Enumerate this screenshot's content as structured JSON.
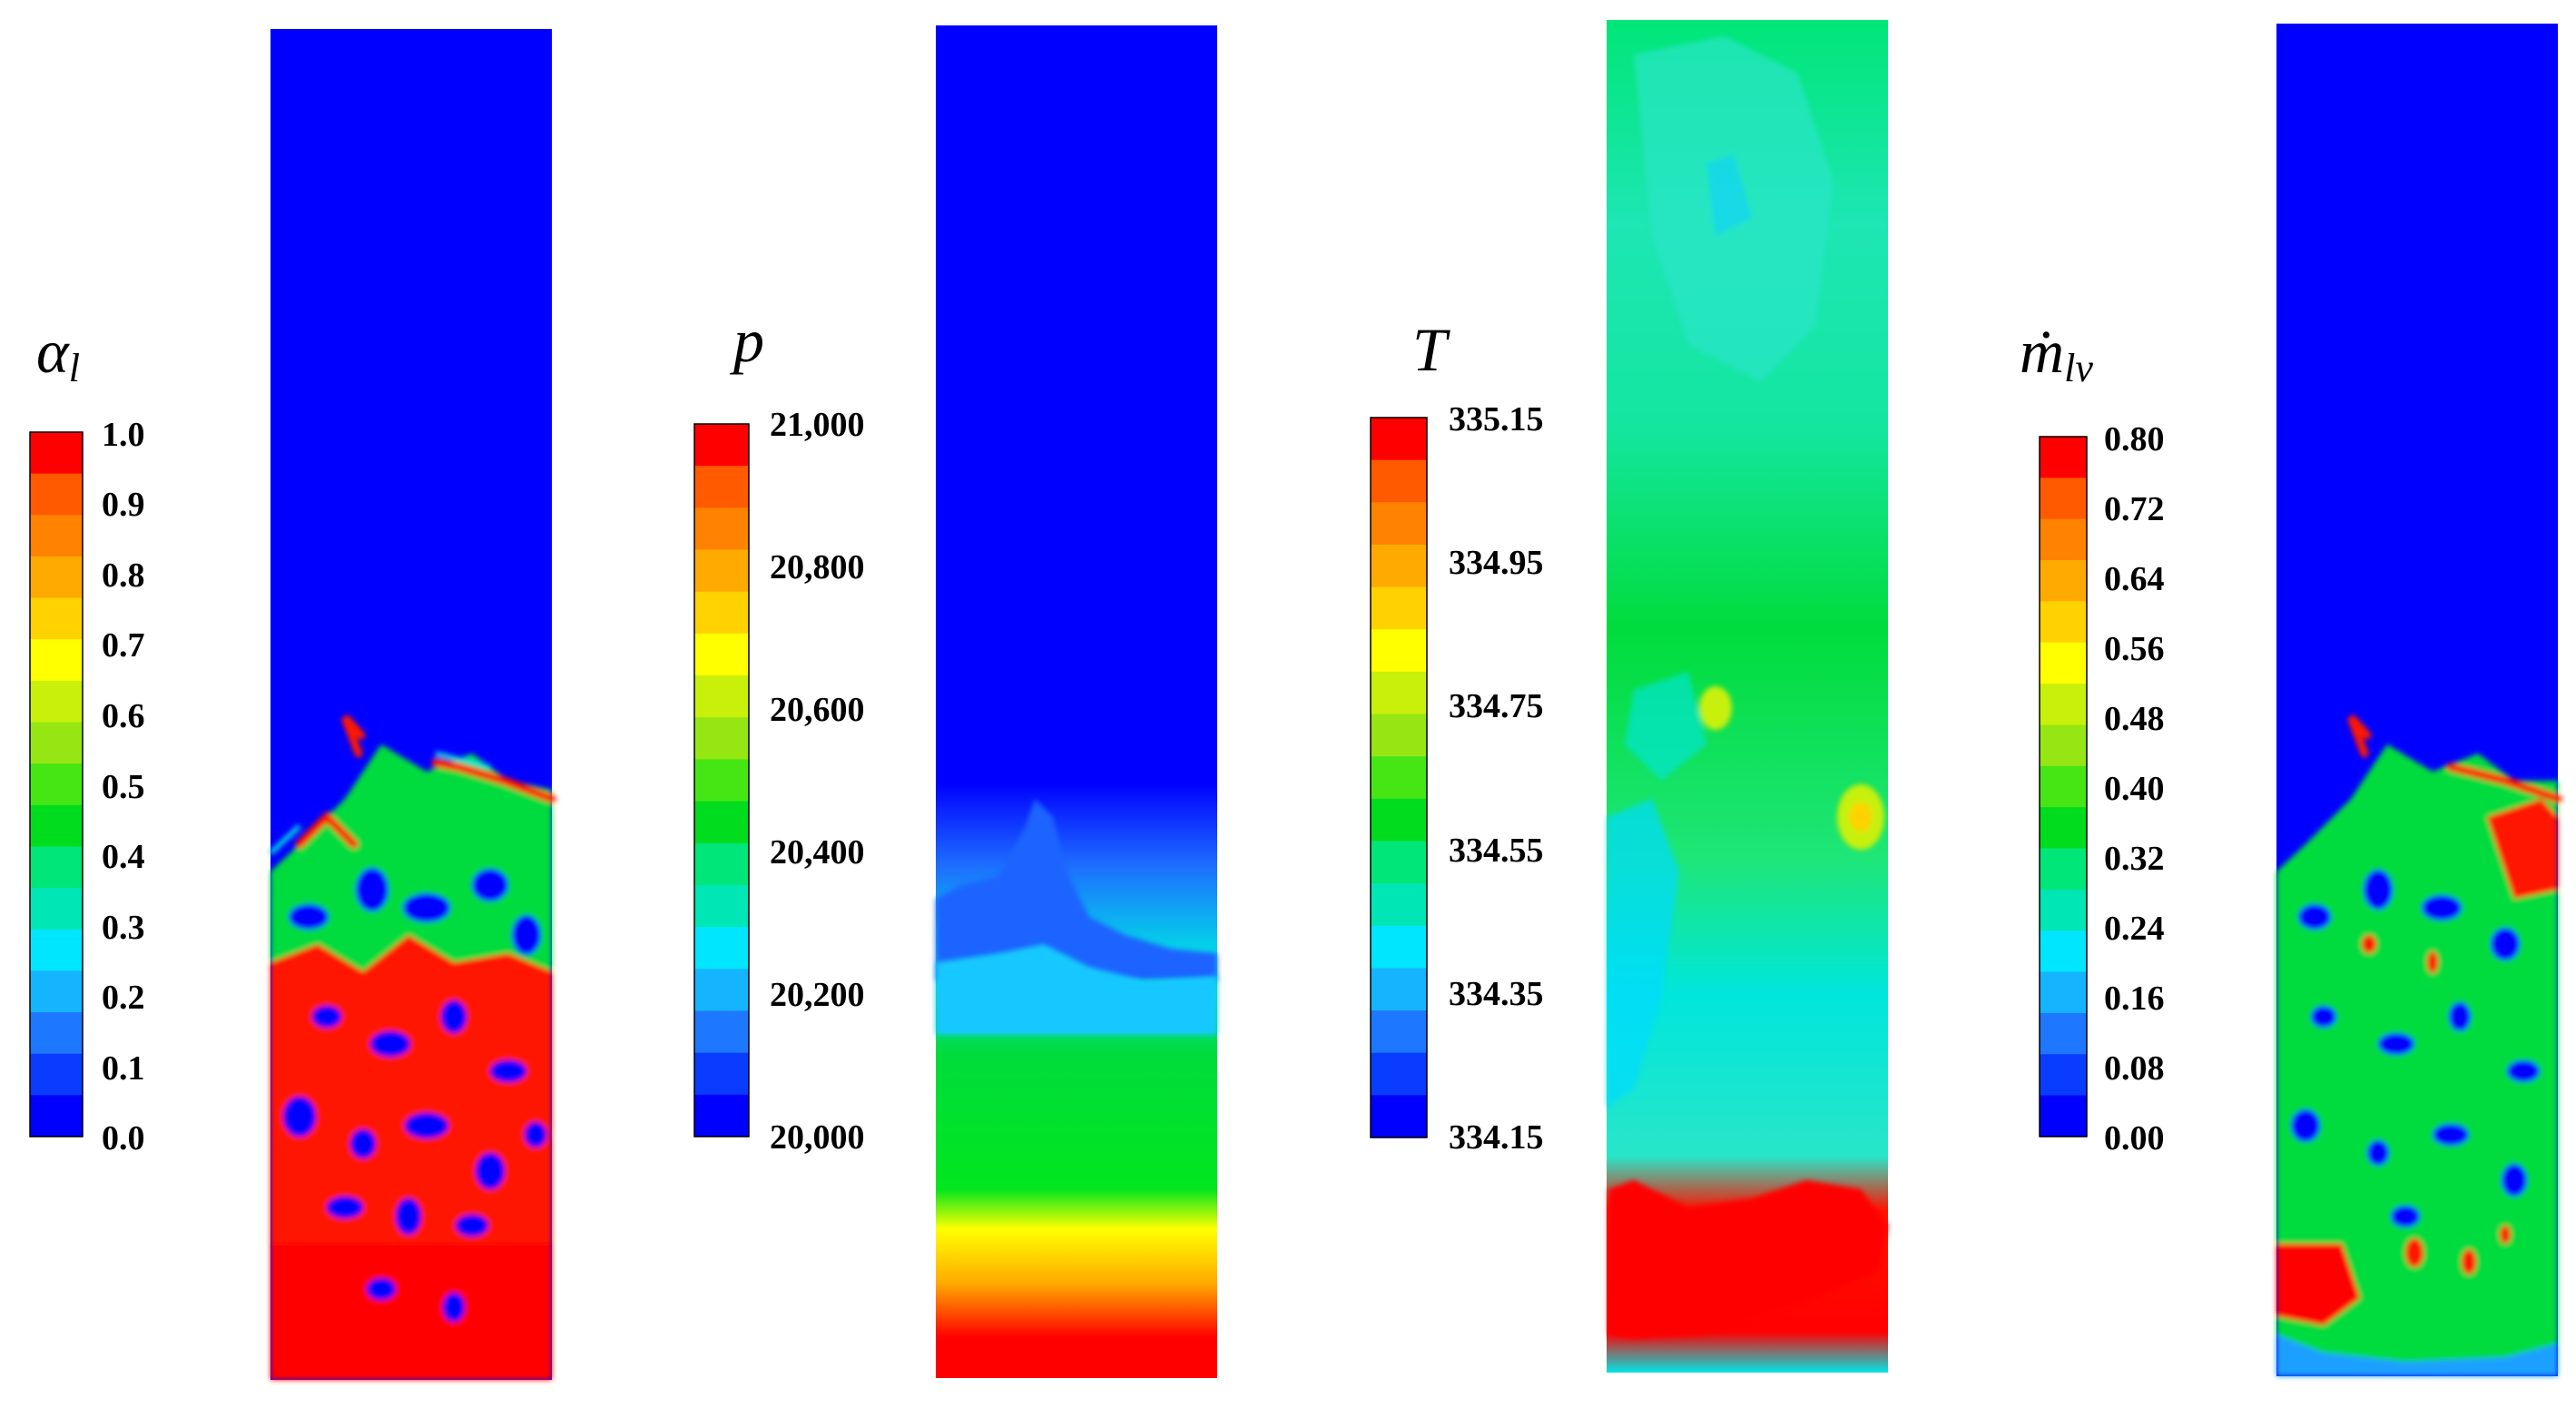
{
  "colorbar_palette": [
    "#0000ff",
    "#0a3cff",
    "#1e78ff",
    "#14b4ff",
    "#00e6ff",
    "#00e6b4",
    "#00e678",
    "#00dc1e",
    "#46e614",
    "#96e614",
    "#c8f00a",
    "#ffff00",
    "#ffd200",
    "#ffaa00",
    "#ff8200",
    "#ff5a00",
    "#ff0000"
  ],
  "panels": [
    {
      "symbol": "α",
      "symbol_sub": "l",
      "ticks": [
        "1.0",
        "0.9",
        "0.8",
        "0.7",
        "0.6",
        "0.5",
        "0.4",
        "0.3",
        "0.2",
        "0.1",
        "0.0"
      ]
    },
    {
      "symbol": "p",
      "symbol_sub": "",
      "ticks": [
        "21,000",
        "20,800",
        "20,600",
        "20,400",
        "20,200",
        "20,000"
      ]
    },
    {
      "symbol": "T",
      "symbol_sub": "",
      "ticks": [
        "335.15",
        "334.95",
        "334.75",
        "334.55",
        "334.35",
        "334.15"
      ]
    },
    {
      "symbol": "ṁ",
      "symbol_sub": "lv",
      "ticks": [
        "0.80",
        "0.72",
        "0.64",
        "0.56",
        "0.48",
        "0.40",
        "0.32",
        "0.24",
        "0.16",
        "0.08",
        "0.00"
      ]
    }
  ]
}
